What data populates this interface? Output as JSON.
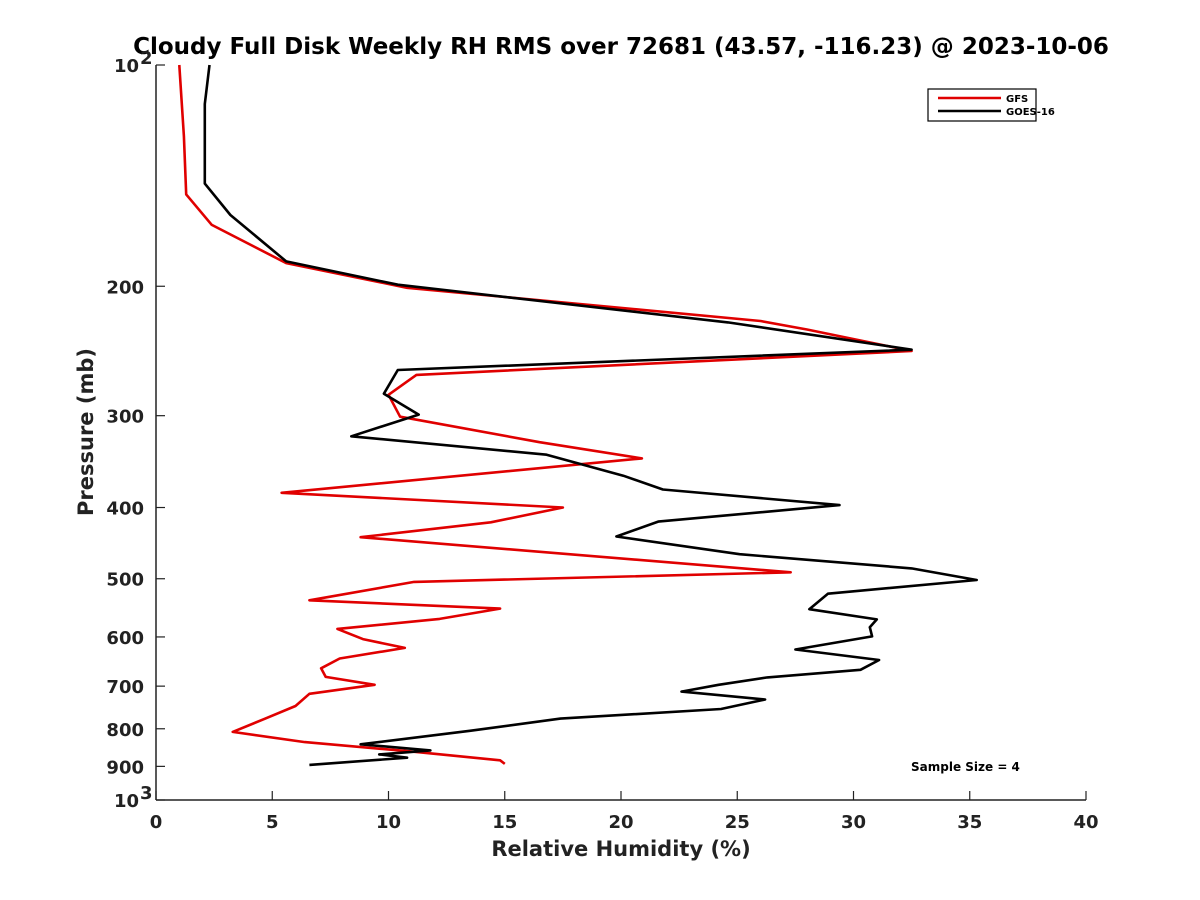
{
  "chart_data": {
    "type": "line",
    "title": "Cloudy Full Disk Weekly RH RMS over 72681 (43.57, -116.23) @ 2023-10-06",
    "xlabel": "Relative Humidity (%)",
    "ylabel": "Pressure (mb)",
    "xlim": [
      0,
      40
    ],
    "ylim": [
      100,
      1000
    ],
    "yscale": "log",
    "y_reversed": true,
    "x_ticks": [
      0,
      5,
      10,
      15,
      20,
      25,
      30,
      35,
      40
    ],
    "y_ticks": [
      {
        "value": 100,
        "label": "10",
        "exp": "2"
      },
      {
        "value": 200,
        "label": "200",
        "exp": ""
      },
      {
        "value": 300,
        "label": "300",
        "exp": ""
      },
      {
        "value": 400,
        "label": "400",
        "exp": ""
      },
      {
        "value": 500,
        "label": "500",
        "exp": ""
      },
      {
        "value": 600,
        "label": "600",
        "exp": ""
      },
      {
        "value": 700,
        "label": "700",
        "exp": ""
      },
      {
        "value": 800,
        "label": "800",
        "exp": ""
      },
      {
        "value": 900,
        "label": "900",
        "exp": ""
      },
      {
        "value": 1000,
        "label": "10",
        "exp": "3"
      }
    ],
    "grid": false,
    "legend_position": "top-right",
    "annotation": "Sample Size = 4",
    "series": [
      {
        "name": "GFS",
        "color": "#e00000",
        "points": [
          [
            1.0,
            100
          ],
          [
            1.2,
            125
          ],
          [
            1.3,
            150
          ],
          [
            2.4,
            165
          ],
          [
            5.6,
            186
          ],
          [
            10.8,
            201
          ],
          [
            26.0,
            223
          ],
          [
            28.0,
            229
          ],
          [
            32.5,
            245
          ],
          [
            11.2,
            264
          ],
          [
            10.0,
            281
          ],
          [
            10.5,
            301
          ],
          [
            16.5,
            326
          ],
          [
            20.9,
            343
          ],
          [
            5.4,
            382
          ],
          [
            17.5,
            400
          ],
          [
            14.4,
            419
          ],
          [
            8.8,
            439
          ],
          [
            27.3,
            490
          ],
          [
            11.1,
            505
          ],
          [
            6.6,
            535
          ],
          [
            14.8,
            549
          ],
          [
            12.2,
            567
          ],
          [
            7.8,
            585
          ],
          [
            8.9,
            604
          ],
          [
            10.7,
            621
          ],
          [
            7.9,
            642
          ],
          [
            7.1,
            662
          ],
          [
            7.3,
            680
          ],
          [
            9.4,
            697
          ],
          [
            6.6,
            717
          ],
          [
            6.0,
            745
          ],
          [
            4.7,
            775
          ],
          [
            3.3,
            808
          ],
          [
            6.4,
            834
          ],
          [
            10.8,
            858
          ],
          [
            14.8,
            883
          ],
          [
            15.0,
            893
          ]
        ]
      },
      {
        "name": "GOES-16",
        "color": "#000000",
        "points": [
          [
            2.3,
            100
          ],
          [
            2.1,
            113
          ],
          [
            2.1,
            128
          ],
          [
            2.1,
            145
          ],
          [
            3.2,
            160
          ],
          [
            5.6,
            185
          ],
          [
            10.4,
            199
          ],
          [
            24.6,
            224
          ],
          [
            32.5,
            244
          ],
          [
            10.4,
            260
          ],
          [
            9.8,
            280
          ],
          [
            11.3,
            299
          ],
          [
            8.4,
            320
          ],
          [
            16.8,
            339
          ],
          [
            20.1,
            362
          ],
          [
            21.8,
            378
          ],
          [
            29.4,
            397
          ],
          [
            21.6,
            418
          ],
          [
            19.8,
            438
          ],
          [
            25.1,
            463
          ],
          [
            32.5,
            484
          ],
          [
            35.3,
            502
          ],
          [
            28.9,
            524
          ],
          [
            28.1,
            550
          ],
          [
            31.0,
            568
          ],
          [
            30.7,
            582
          ],
          [
            30.8,
            599
          ],
          [
            27.5,
            624
          ],
          [
            31.1,
            645
          ],
          [
            30.3,
            665
          ],
          [
            26.3,
            681
          ],
          [
            24.2,
            697
          ],
          [
            22.6,
            712
          ],
          [
            26.2,
            730
          ],
          [
            24.3,
            752
          ],
          [
            17.4,
            775
          ],
          [
            13.5,
            805
          ],
          [
            8.8,
            840
          ],
          [
            11.8,
            856
          ],
          [
            9.6,
            867
          ],
          [
            10.8,
            876
          ],
          [
            6.6,
            896
          ]
        ]
      }
    ]
  }
}
